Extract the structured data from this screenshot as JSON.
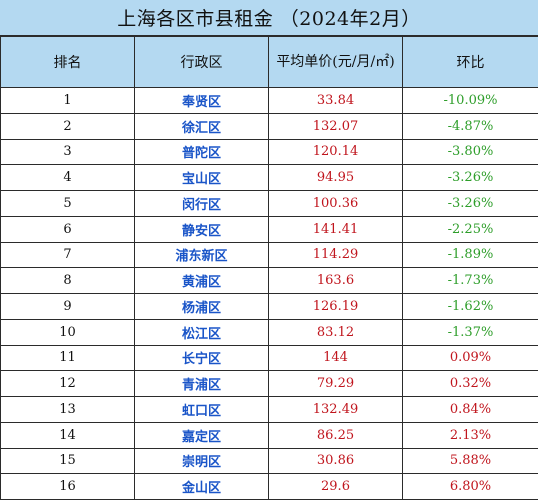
{
  "title": "上海各区市县租金 （2024年2月）",
  "headers": {
    "rank": "排名",
    "district": "行政区",
    "price": "平均单价(元/月/㎡)",
    "change": "环比"
  },
  "colors": {
    "header_bg": "#b4d9f1",
    "district_text": "#1a55c8",
    "price_text": "#c0151d",
    "negative_change": "#2e9e2a",
    "positive_change": "#c0151d"
  },
  "rows": [
    {
      "rank": "1",
      "district": "奉贤区",
      "price": "33.84",
      "change": "-10.09%",
      "trend": "neg"
    },
    {
      "rank": "2",
      "district": "徐汇区",
      "price": "132.07",
      "change": "-4.87%",
      "trend": "neg"
    },
    {
      "rank": "3",
      "district": "普陀区",
      "price": "120.14",
      "change": "-3.80%",
      "trend": "neg"
    },
    {
      "rank": "4",
      "district": "宝山区",
      "price": "94.95",
      "change": "-3.26%",
      "trend": "neg"
    },
    {
      "rank": "5",
      "district": "闵行区",
      "price": "100.36",
      "change": "-3.26%",
      "trend": "neg"
    },
    {
      "rank": "6",
      "district": "静安区",
      "price": "141.41",
      "change": "-2.25%",
      "trend": "neg"
    },
    {
      "rank": "7",
      "district": "浦东新区",
      "price": "114.29",
      "change": "-1.89%",
      "trend": "neg"
    },
    {
      "rank": "8",
      "district": "黄浦区",
      "price": "163.6",
      "change": "-1.73%",
      "trend": "neg"
    },
    {
      "rank": "9",
      "district": "杨浦区",
      "price": "126.19",
      "change": "-1.62%",
      "trend": "neg"
    },
    {
      "rank": "10",
      "district": "松江区",
      "price": "83.12",
      "change": "-1.37%",
      "trend": "neg"
    },
    {
      "rank": "11",
      "district": "长宁区",
      "price": "144",
      "change": "0.09%",
      "trend": "pos"
    },
    {
      "rank": "12",
      "district": "青浦区",
      "price": "79.29",
      "change": "0.32%",
      "trend": "pos"
    },
    {
      "rank": "13",
      "district": "虹口区",
      "price": "132.49",
      "change": "0.84%",
      "trend": "pos"
    },
    {
      "rank": "14",
      "district": "嘉定区",
      "price": "86.25",
      "change": "2.13%",
      "trend": "pos"
    },
    {
      "rank": "15",
      "district": "崇明区",
      "price": "30.86",
      "change": "5.88%",
      "trend": "pos"
    },
    {
      "rank": "16",
      "district": "金山区",
      "price": "29.6",
      "change": "6.80%",
      "trend": "pos"
    }
  ]
}
